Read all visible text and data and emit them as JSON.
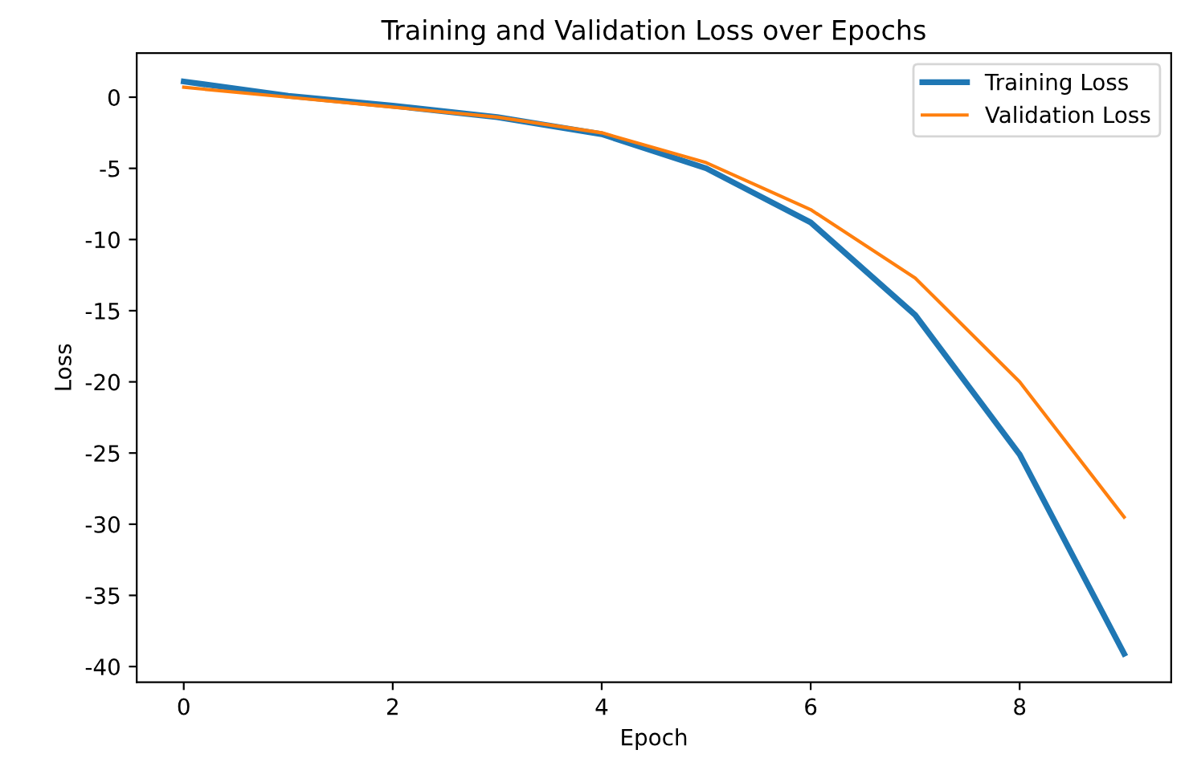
{
  "chart_data": {
    "type": "line",
    "title": "Training and Validation Loss over Epochs",
    "xlabel": "Epoch",
    "ylabel": "Loss",
    "x": [
      0,
      1,
      2,
      3,
      4,
      5,
      6,
      7,
      8,
      9
    ],
    "series": [
      {
        "name": "Training Loss",
        "color": "#1f77b4",
        "values": [
          1.1,
          0.1,
          -0.6,
          -1.4,
          -2.6,
          -5.0,
          -8.8,
          -15.3,
          -25.1,
          -39.1
        ]
      },
      {
        "name": "Validation Loss",
        "color": "#ff7f0e",
        "values": [
          0.7,
          0.0,
          -0.7,
          -1.4,
          -2.5,
          -4.6,
          -7.9,
          -12.7,
          -20.0,
          -29.5
        ]
      }
    ],
    "xlim": [
      -0.45,
      9.45
    ],
    "ylim": [
      -41.1,
      3.1
    ],
    "xticks": [
      0,
      2,
      4,
      6,
      8
    ],
    "yticks": [
      0,
      -5,
      -10,
      -15,
      -20,
      -25,
      -30,
      -35,
      -40
    ],
    "legend": "top right",
    "grid": false,
    "marker": "none",
    "line_style": "solid"
  }
}
